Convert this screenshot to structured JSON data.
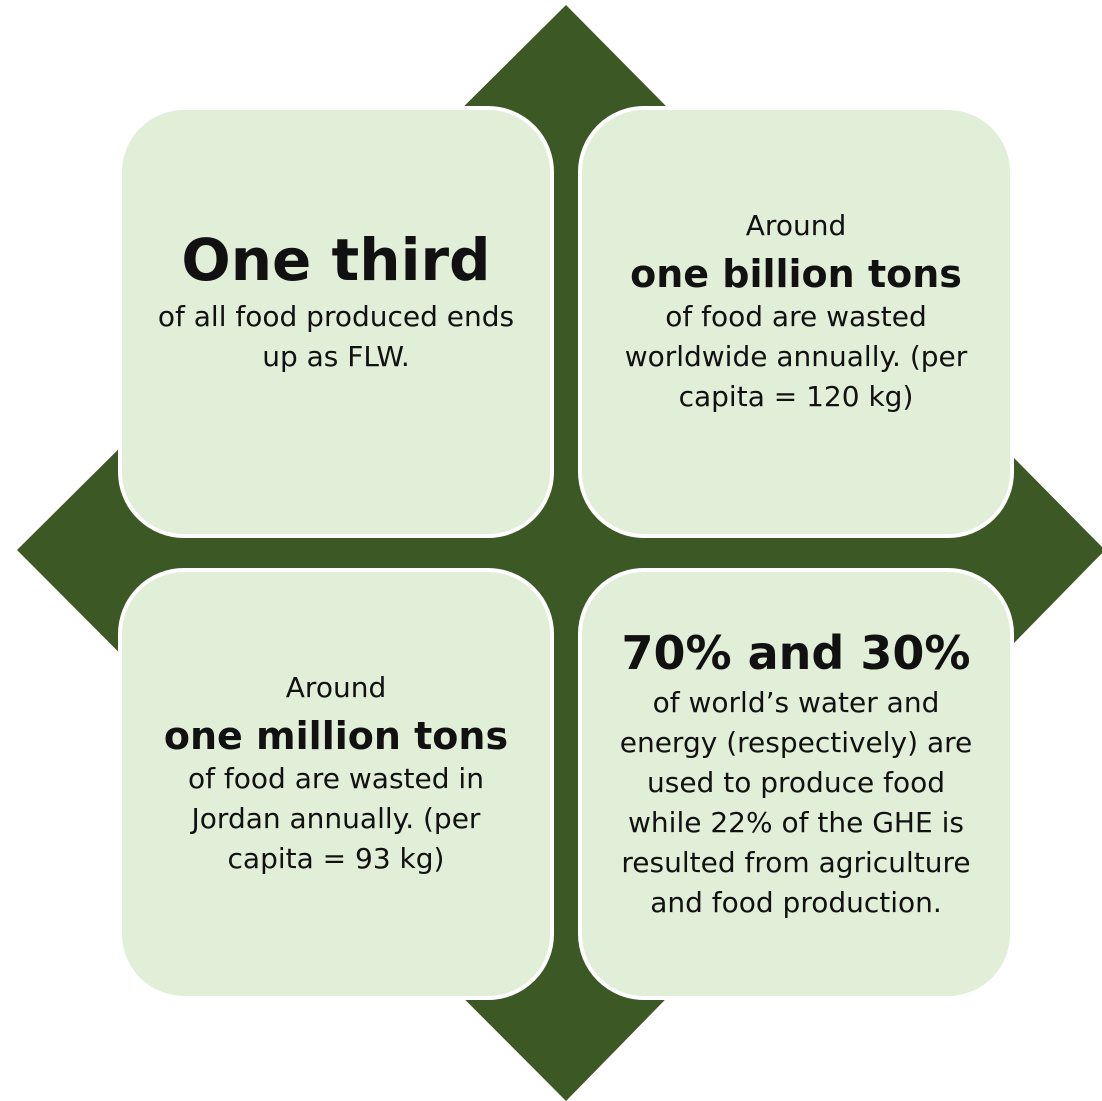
{
  "colors": {
    "diamond": "#3c5824",
    "card_fill": "#e1eed8",
    "card_border": "#ffffff",
    "text": "#111111"
  },
  "cards": [
    {
      "pre": "",
      "headline": "One third",
      "desc": "of all food produced ends up as FLW."
    },
    {
      "pre": "Around",
      "headline": "one billion tons",
      "desc": "of food are wasted worldwide annually. (per capita = 120 kg)"
    },
    {
      "pre": "Around",
      "headline": "one million tons",
      "desc": "of food are wasted in Jordan annually. (per capita = 93 kg)"
    },
    {
      "pre": "",
      "headline": "70% and 30%",
      "desc": "of world’s water and energy (respectively) are used to produce food while 22% of the GHE is resulted from agriculture and food production."
    }
  ]
}
